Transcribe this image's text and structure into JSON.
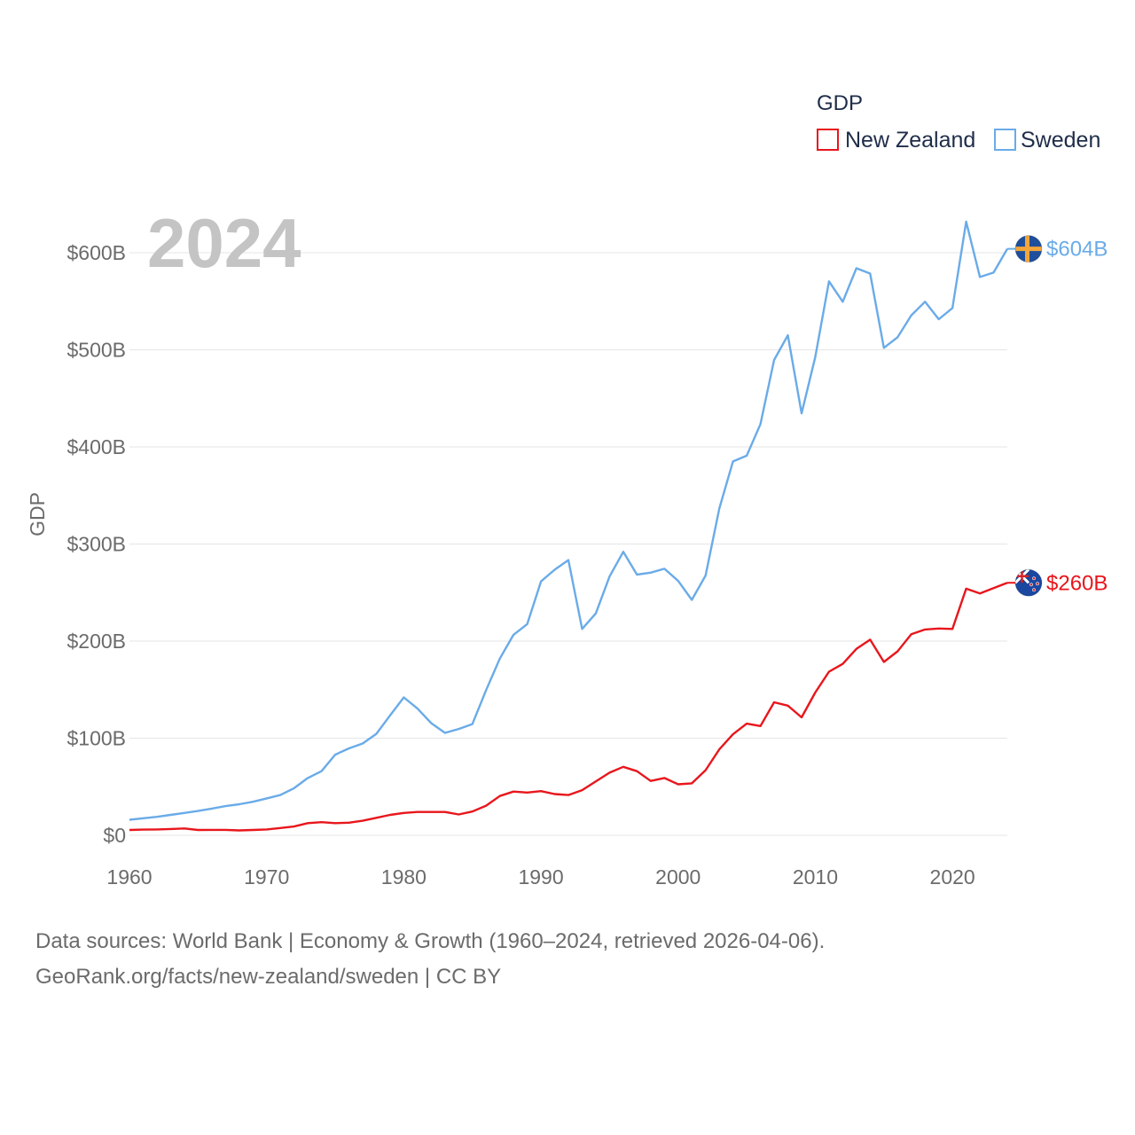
{
  "chart_data": {
    "type": "line",
    "title_year": "2024",
    "ylabel": "GDP",
    "xlabel": "",
    "xlim": [
      1960,
      2024
    ],
    "ylim": [
      0,
      600
    ],
    "x_ticks": [
      1960,
      1970,
      1980,
      1990,
      2000,
      2010,
      2020
    ],
    "y_ticks": [
      0,
      100,
      200,
      300,
      400,
      500,
      600
    ],
    "y_tick_labels": [
      "$0",
      "$100B",
      "$200B",
      "$300B",
      "$400B",
      "$500B",
      "$600B"
    ],
    "unit": "billions USD",
    "legend": {
      "title": "GDP",
      "placement": "top-right"
    },
    "x": [
      1960,
      1961,
      1962,
      1963,
      1964,
      1965,
      1966,
      1967,
      1968,
      1969,
      1970,
      1971,
      1972,
      1973,
      1974,
      1975,
      1976,
      1977,
      1978,
      1979,
      1980,
      1981,
      1982,
      1983,
      1984,
      1985,
      1986,
      1987,
      1988,
      1989,
      1990,
      1991,
      1992,
      1993,
      1994,
      1995,
      1996,
      1997,
      1998,
      1999,
      2000,
      2001,
      2002,
      2003,
      2004,
      2005,
      2006,
      2007,
      2008,
      2009,
      2010,
      2011,
      2012,
      2013,
      2014,
      2015,
      2016,
      2017,
      2018,
      2019,
      2020,
      2021,
      2022,
      2023,
      2024
    ],
    "series": [
      {
        "name": "New Zealand",
        "color": "#e8161c",
        "end_label": "$260B",
        "flag": "new-zealand-flag",
        "values": [
          5.5,
          5.8,
          6.0,
          6.5,
          7.0,
          5.5,
          5.6,
          5.6,
          5.0,
          5.5,
          6.0,
          7.5,
          9.0,
          12.5,
          13.5,
          12.5,
          13.0,
          15.0,
          18.0,
          21.0,
          23.0,
          24.0,
          24.0,
          24.0,
          21.5,
          24.5,
          30.5,
          40.5,
          45.0,
          44.0,
          45.5,
          42.5,
          41.5,
          46.5,
          55.5,
          64.5,
          70.5,
          66.0,
          56.0,
          59.0,
          52.5,
          53.5,
          67.0,
          88.5,
          104.0,
          115.0,
          112.5,
          137.0,
          133.5,
          121.5,
          147.0,
          168.5,
          176.5,
          192.0,
          201.5,
          178.5,
          189.5,
          207.0,
          212.0,
          213.0,
          212.5,
          254.0,
          249.0,
          254.5,
          260.0
        ]
      },
      {
        "name": "Sweden",
        "color": "#6aabe8",
        "end_label": "$604B",
        "flag": "sweden-flag",
        "values": [
          16.0,
          17.5,
          19.0,
          21.0,
          23.0,
          25.0,
          27.5,
          30.0,
          32.0,
          34.5,
          38.0,
          41.5,
          48.5,
          59.0,
          66.0,
          83.0,
          89.5,
          94.5,
          104.5,
          123.5,
          142.0,
          130.5,
          115.5,
          105.5,
          109.5,
          114.5,
          149.5,
          182.0,
          206.5,
          217.5,
          261.5,
          273.5,
          283.5,
          212.5,
          228.5,
          266.5,
          292.0,
          268.5,
          270.5,
          274.5,
          262.0,
          242.5,
          267.5,
          336.5,
          385.0,
          391.0,
          423.5,
          489.5,
          515.0,
          434.5,
          492.5,
          570.5,
          549.5,
          584.0,
          578.5,
          502.0,
          513.0,
          535.5,
          549.5,
          531.5,
          543.0,
          632.0,
          575.0,
          579.5,
          604.0
        ]
      }
    ]
  },
  "source": {
    "line1": "Data sources: World Bank | Economy & Growth (1960–2024, retrieved 2026-04-06).",
    "line2": "GeoRank.org/facts/new-zealand/sweden | CC BY"
  },
  "colors": {
    "grid": "#e6e6e6",
    "tick_text": "#6b6b6b",
    "year_watermark": "#c4c4c4",
    "legend_text": "#1f2d4a"
  }
}
